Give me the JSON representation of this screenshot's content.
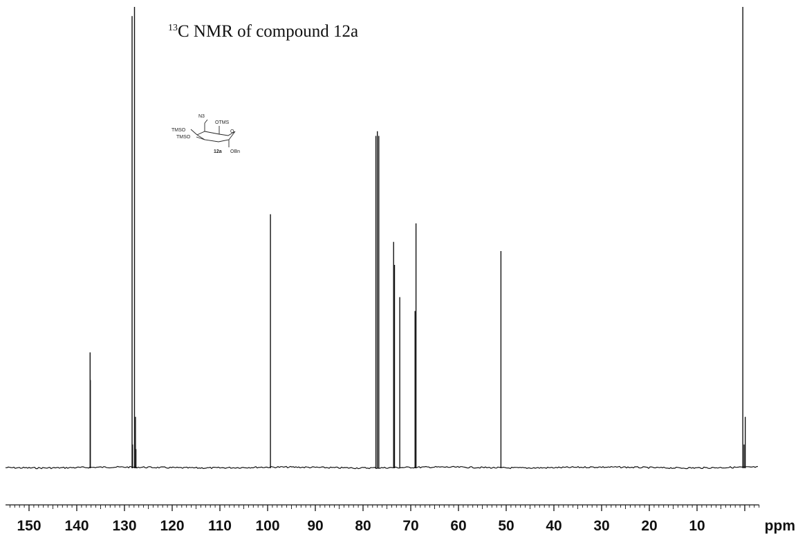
{
  "chart_data": {
    "type": "line",
    "title_prefix": "13",
    "title": "C NMR of compound 12a",
    "xunit": "ppm",
    "xlim": [
      155,
      -3
    ],
    "ticks": [
      150,
      140,
      130,
      120,
      110,
      100,
      90,
      80,
      70,
      60,
      50,
      40,
      30,
      20,
      10
    ],
    "tick_labels": [
      "150",
      "140",
      "130",
      "120",
      "110",
      "100",
      "90",
      "80",
      "70",
      "60",
      "50",
      "40",
      "30",
      "20",
      "10"
    ],
    "ylim": [
      0,
      100
    ],
    "peaks": [
      {
        "ppm": 137.2,
        "intensity": 25
      },
      {
        "ppm": 137.15,
        "intensity": 19
      },
      {
        "ppm": 128.4,
        "intensity": 98
      },
      {
        "ppm": 128.3,
        "intensity": 5
      },
      {
        "ppm": 127.9,
        "intensity": 100
      },
      {
        "ppm": 127.7,
        "intensity": 11
      },
      {
        "ppm": 127.6,
        "intensity": 4
      },
      {
        "ppm": 99.4,
        "intensity": 55
      },
      {
        "ppm": 77.3,
        "intensity": 72
      },
      {
        "ppm": 77.0,
        "intensity": 73
      },
      {
        "ppm": 76.7,
        "intensity": 72
      },
      {
        "ppm": 73.6,
        "intensity": 49
      },
      {
        "ppm": 73.4,
        "intensity": 44
      },
      {
        "ppm": 72.3,
        "intensity": 37
      },
      {
        "ppm": 69.1,
        "intensity": 34
      },
      {
        "ppm": 68.9,
        "intensity": 53
      },
      {
        "ppm": 51.1,
        "intensity": 47
      },
      {
        "ppm": 0.4,
        "intensity": 100
      },
      {
        "ppm": 0.15,
        "intensity": 5
      },
      {
        "ppm": -0.1,
        "intensity": 11
      }
    ]
  },
  "structure": {
    "compound_label": "12a",
    "substituents": [
      "N3",
      "OTMS",
      "O",
      "TMSO",
      "TMSO",
      "OBn"
    ]
  }
}
